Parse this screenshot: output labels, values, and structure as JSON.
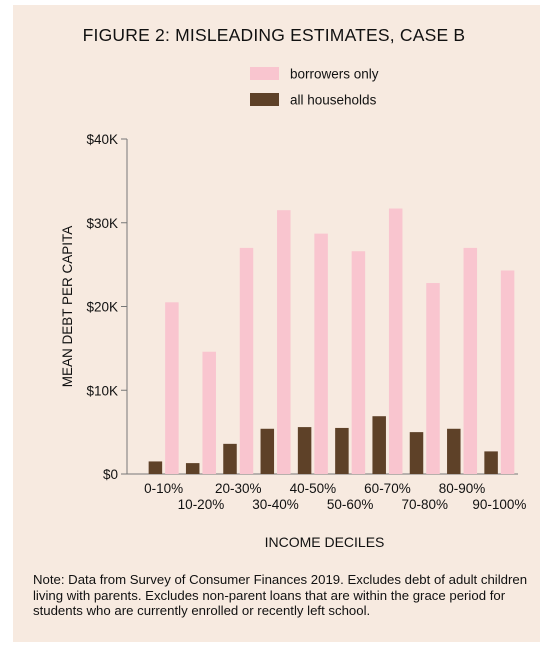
{
  "title": "FIGURE 2: MISLEADING ESTIMATES, CASE B",
  "note": "Note: Data from Survey of Consumer Finances 2019. Excludes debt of adult children living with parents. Excludes non-parent loans that are within the grace period for students who are currently enrolled or recently left school.",
  "colors": {
    "background": "#f7eae0",
    "borrowers": "#f9c5cf",
    "households": "#5e4128"
  },
  "chart_data": {
    "type": "bar",
    "title": "FIGURE 2: MISLEADING ESTIMATES, CASE B",
    "xlabel": "INCOME DECILES",
    "ylabel": "MEAN DEBT PER CAPITA",
    "ylim": [
      0,
      40000
    ],
    "yticks": [
      0,
      10000,
      20000,
      30000,
      40000
    ],
    "ytick_labels": [
      "$0",
      "$10K",
      "$20K",
      "$30K",
      "$40K"
    ],
    "legend_position": "top-center",
    "grid": false,
    "categories": [
      "0-10%",
      "10-20%",
      "20-30%",
      "30-40%",
      "40-50%",
      "50-60%",
      "60-70%",
      "70-80%",
      "80-90%",
      "90-100%"
    ],
    "series": [
      {
        "name": "borrowers only",
        "color": "#f9c5cf",
        "values": [
          20500,
          14600,
          27000,
          31500,
          28700,
          26600,
          31700,
          22800,
          27000,
          24300
        ]
      },
      {
        "name": "all households",
        "color": "#5e4128",
        "values": [
          1500,
          1300,
          3600,
          5400,
          5600,
          5500,
          6900,
          5000,
          5400,
          2700
        ]
      }
    ]
  }
}
